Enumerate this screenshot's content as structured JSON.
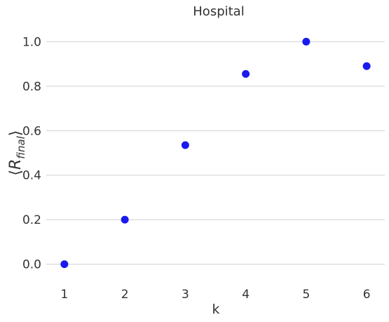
{
  "chart_data": {
    "type": "scatter",
    "title": "Hospital",
    "xlabel": "k",
    "ylabel_parts": {
      "open": "⟨",
      "R": "R",
      "sub": "final",
      "close": "⟩"
    },
    "x": [
      1,
      2,
      3,
      4,
      5,
      6
    ],
    "y": [
      0.0,
      0.2,
      0.535,
      0.855,
      1.0,
      0.89
    ],
    "xticks": [
      "1",
      "2",
      "3",
      "4",
      "5",
      "6"
    ],
    "yticks": [
      "0.0",
      "0.2",
      "0.4",
      "0.6",
      "0.8",
      "1.0"
    ],
    "ytick_values": [
      0.0,
      0.2,
      0.4,
      0.6,
      0.8,
      1.0
    ],
    "xlim": [
      0.7,
      6.3
    ],
    "ylim": [
      -0.08,
      1.08
    ],
    "grid": "horizontal",
    "marker_color": "#1a1aee"
  }
}
